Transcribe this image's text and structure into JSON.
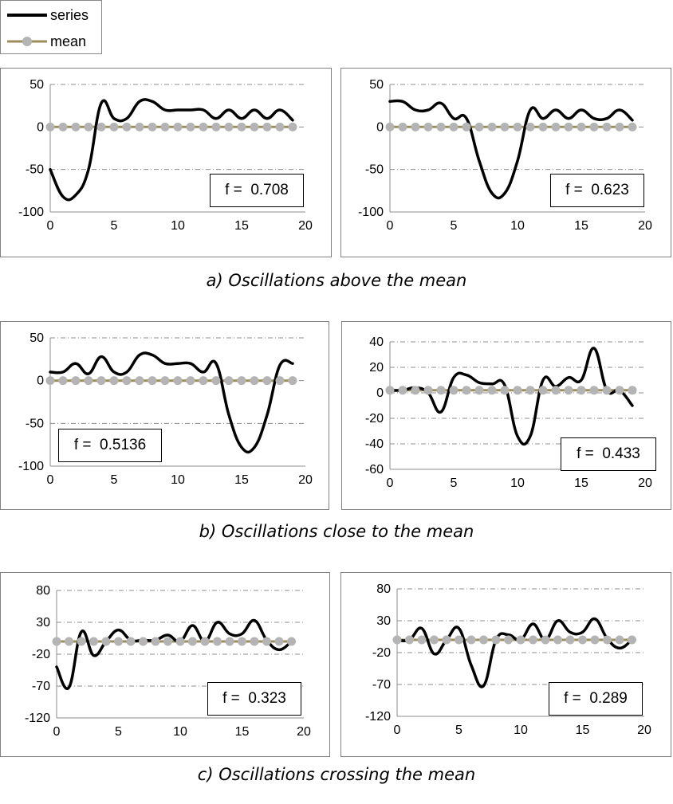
{
  "legend": {
    "series_label": "series",
    "mean_label": "mean",
    "series_color": "#000000",
    "mean_line_color": "#9c8d5a",
    "mean_marker_color": "#b4b4b4"
  },
  "captions": {
    "a": "a) Oscillations above the mean",
    "b": "b) Oscillations close to the mean",
    "c": "c) Oscillations crossing the mean"
  },
  "chart_data": [
    {
      "type": "line",
      "panel": "a-left",
      "f_prefix": "f =",
      "f_value": "0.708",
      "xlim": [
        0,
        20
      ],
      "xticks": [
        0,
        5,
        10,
        15,
        20
      ],
      "ylim": [
        -100,
        50
      ],
      "yticks": [
        50,
        0,
        -50,
        -100
      ],
      "grid": true,
      "series": [
        {
          "name": "series",
          "values": [
            -50,
            -82,
            -80,
            -50,
            28,
            10,
            10,
            30,
            30,
            20,
            20,
            20,
            20,
            10,
            20,
            10,
            20,
            10,
            20,
            8
          ]
        },
        {
          "name": "mean",
          "values": [
            0,
            0,
            0,
            0,
            0,
            0,
            0,
            0,
            0,
            0,
            0,
            0,
            0,
            0,
            0,
            0,
            0,
            0,
            0,
            0
          ]
        }
      ]
    },
    {
      "type": "line",
      "panel": "a-right",
      "f_prefix": "f =",
      "f_value": "0.623",
      "xlim": [
        0,
        20
      ],
      "xticks": [
        0,
        5,
        10,
        15,
        20
      ],
      "ylim": [
        -100,
        50
      ],
      "yticks": [
        50,
        0,
        -50,
        -100
      ],
      "grid": true,
      "series": [
        {
          "name": "series",
          "values": [
            30,
            30,
            20,
            20,
            28,
            10,
            10,
            -40,
            -78,
            -78,
            -40,
            20,
            10,
            20,
            10,
            20,
            10,
            10,
            20,
            8
          ]
        },
        {
          "name": "mean",
          "values": [
            0,
            0,
            0,
            0,
            0,
            0,
            0,
            0,
            0,
            0,
            0,
            0,
            0,
            0,
            0,
            0,
            0,
            0,
            0,
            0
          ]
        }
      ]
    },
    {
      "type": "line",
      "panel": "b-left",
      "f_prefix": "f =",
      "f_value": "0.5136",
      "xlim": [
        0,
        20
      ],
      "xticks": [
        0,
        5,
        10,
        15,
        20
      ],
      "ylim": [
        -100,
        50
      ],
      "yticks": [
        50,
        0,
        -50,
        -100
      ],
      "grid": true,
      "series": [
        {
          "name": "series",
          "values": [
            10,
            10,
            20,
            8,
            28,
            10,
            10,
            30,
            30,
            20,
            20,
            20,
            10,
            20,
            -40,
            -78,
            -78,
            -40,
            18,
            20
          ]
        },
        {
          "name": "mean",
          "values": [
            0,
            0,
            0,
            0,
            0,
            0,
            0,
            0,
            0,
            0,
            0,
            0,
            0,
            0,
            0,
            0,
            0,
            0,
            0,
            0
          ]
        }
      ]
    },
    {
      "type": "line",
      "panel": "b-right",
      "f_prefix": "f =",
      "f_value": "0.433",
      "xlim": [
        0,
        20
      ],
      "xticks": [
        0,
        5,
        10,
        15,
        20
      ],
      "ylim": [
        -60,
        40
      ],
      "yticks": [
        40,
        20,
        0,
        -20,
        -40,
        -60
      ],
      "grid": true,
      "series": [
        {
          "name": "series",
          "values": [
            2,
            2,
            4,
            0,
            -15,
            12,
            14,
            8,
            7,
            6,
            -34,
            -34,
            10,
            5,
            12,
            10,
            35,
            2,
            2,
            -10
          ]
        },
        {
          "name": "mean",
          "values": [
            2,
            2,
            2,
            2,
            2,
            2,
            2,
            2,
            2,
            2,
            2,
            2,
            2,
            2,
            2,
            2,
            2,
            2,
            2,
            2
          ]
        }
      ]
    },
    {
      "type": "line",
      "panel": "c-left",
      "f_prefix": "f =",
      "f_value": "0.323",
      "xlim": [
        0,
        20
      ],
      "xticks": [
        0,
        5,
        10,
        15,
        20
      ],
      "ylim": [
        -120,
        80
      ],
      "yticks": [
        80,
        30,
        -20,
        -70,
        -120
      ],
      "grid": true,
      "series": [
        {
          "name": "series",
          "values": [
            -40,
            -72,
            15,
            -22,
            0,
            18,
            2,
            2,
            2,
            10,
            0,
            25,
            0,
            30,
            12,
            12,
            33,
            2,
            -13,
            0
          ]
        },
        {
          "name": "mean",
          "values": [
            0,
            0,
            0,
            0,
            0,
            0,
            0,
            0,
            0,
            0,
            0,
            0,
            0,
            0,
            0,
            0,
            0,
            0,
            0,
            0
          ]
        }
      ]
    },
    {
      "type": "line",
      "panel": "c-right",
      "f_prefix": "f =",
      "f_value": "0.289",
      "xlim": [
        0,
        20
      ],
      "xticks": [
        0,
        5,
        10,
        15,
        20
      ],
      "ylim": [
        -120,
        80
      ],
      "yticks": [
        80,
        30,
        -20,
        -70,
        -120
      ],
      "grid": true,
      "series": [
        {
          "name": "series",
          "values": [
            0,
            0,
            18,
            -22,
            0,
            18,
            -40,
            -72,
            0,
            8,
            0,
            25,
            0,
            30,
            12,
            12,
            33,
            2,
            -13,
            0
          ]
        },
        {
          "name": "mean",
          "values": [
            0,
            0,
            0,
            0,
            0,
            0,
            0,
            0,
            0,
            0,
            0,
            0,
            0,
            0,
            0,
            0,
            0,
            0,
            0,
            0
          ]
        }
      ]
    }
  ]
}
